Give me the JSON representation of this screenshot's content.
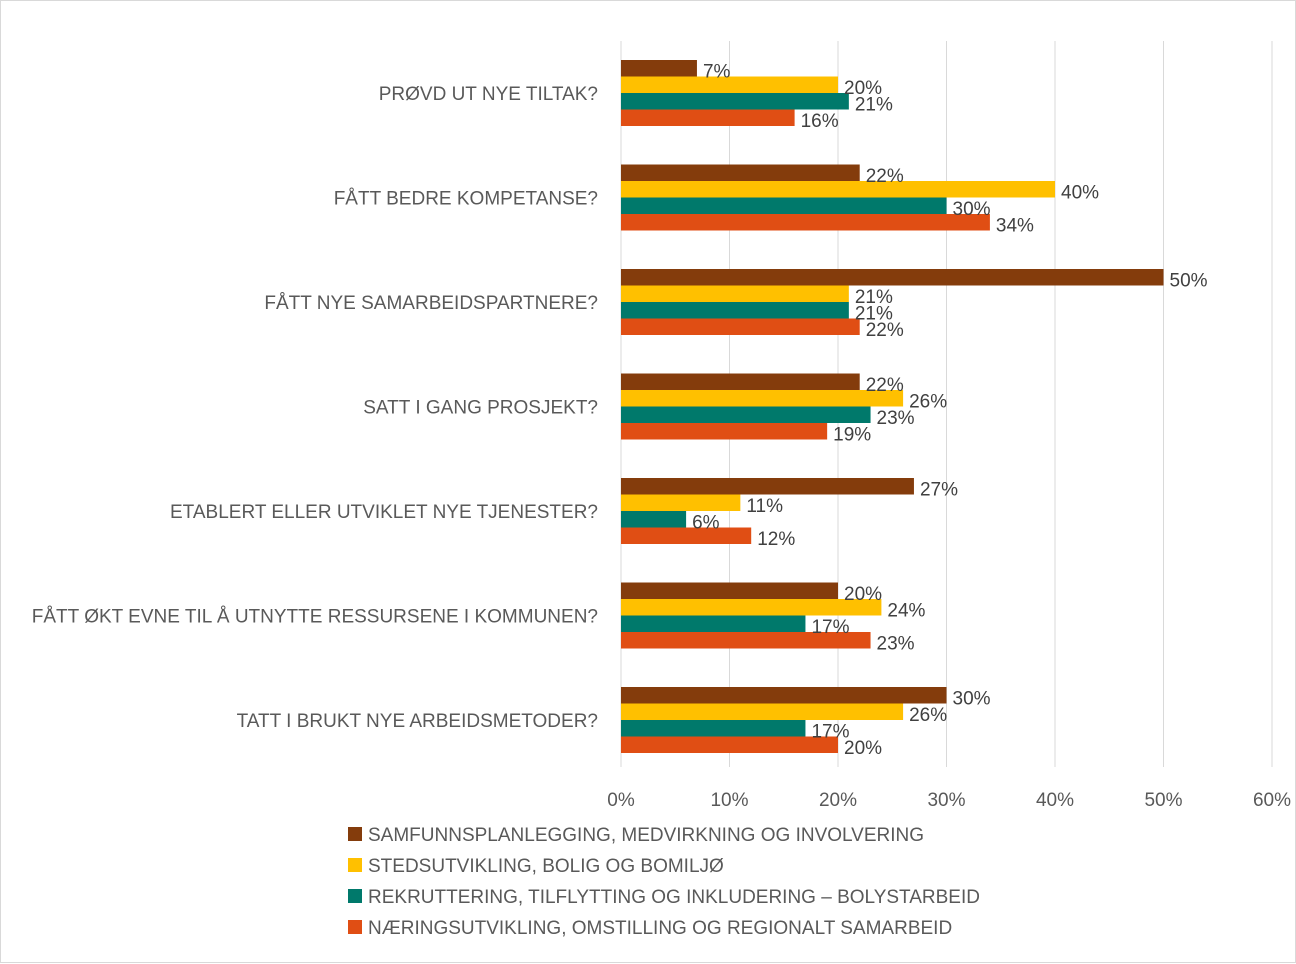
{
  "chart_data": {
    "type": "bar",
    "orientation": "horizontal",
    "categories": [
      "PRØVD UT NYE TILTAK?",
      "FÅTT BEDRE KOMPETANSE?",
      "FÅTT NYE SAMARBEIDSPARTNERE?",
      "SATT I GANG PROSJEKT?",
      "ETABLERT ELLER UTVIKLET NYE TJENESTER?",
      "FÅTT ØKT EVNE TIL Å UTNYTTE RESSURSENE I KOMMUNEN?",
      "TATT I BRUKT NYE ARBEIDSMETODER?"
    ],
    "series": [
      {
        "name": "SAMFUNNSPLANLEGGING, MEDVIRKNING OG INVOLVERING",
        "color": "#843c0c",
        "values": [
          7,
          22,
          50,
          22,
          27,
          20,
          30
        ]
      },
      {
        "name": "STEDSUTVIKLING, BOLIG OG BOMILJØ",
        "color": "#ffc000",
        "values": [
          20,
          40,
          21,
          26,
          11,
          24,
          26
        ]
      },
      {
        "name": "REKRUTTERING, TILFLYTTING OG INKLUDERING – BOLYSTARBEID",
        "color": "#00796b",
        "values": [
          21,
          30,
          21,
          23,
          6,
          17,
          17
        ]
      },
      {
        "name": "NÆRINGSUTVIKLING, OMSTILLING OG REGIONALT SAMARBEID",
        "color": "#e04e14",
        "values": [
          16,
          34,
          22,
          19,
          12,
          23,
          20
        ]
      }
    ],
    "value_suffix": "%",
    "xlim": [
      0,
      60
    ],
    "xticks": [
      "0%",
      "10%",
      "20%",
      "30%",
      "40%",
      "50%",
      "60%"
    ],
    "grid": "vertical",
    "legend_position": "bottom",
    "title": "",
    "xlabel": "",
    "ylabel": ""
  }
}
